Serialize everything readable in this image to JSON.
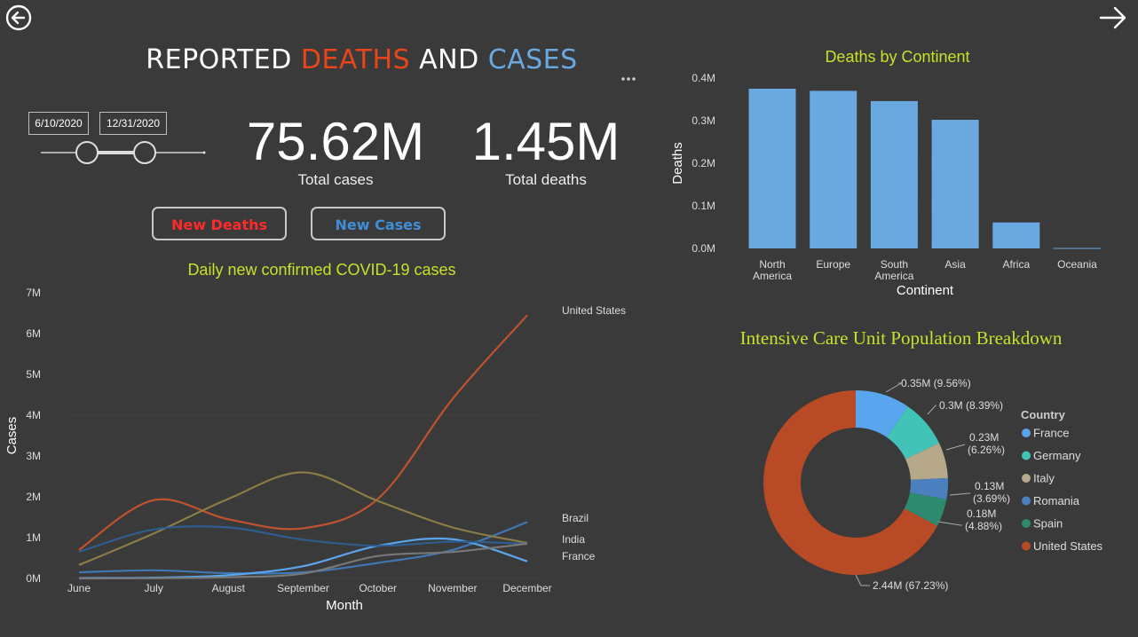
{
  "header": {
    "title_part1": "REPORTED ",
    "title_part2": "DEATHS",
    "title_part3": " AND ",
    "title_part4": "CASES"
  },
  "colors": {
    "deaths_red": "#e8461a",
    "cases_blue": "#6aa8e0",
    "accent_yellow": "#c9e02a"
  },
  "date_filter": {
    "start": "6/10/2020",
    "end": "12/31/2020"
  },
  "kpis": {
    "total_cases_value": "75.62M",
    "total_cases_label": "Total cases",
    "total_deaths_value": "1.45M",
    "total_deaths_label": "Total deaths"
  },
  "buttons": {
    "new_deaths": "New Deaths",
    "new_cases": "New Cases"
  },
  "chart_data": [
    {
      "type": "line",
      "title": "Daily new confirmed COVID-19 cases",
      "xlabel": "Month",
      "ylabel": "Cases",
      "categories": [
        "June",
        "July",
        "August",
        "September",
        "October",
        "November",
        "December"
      ],
      "y_ticks": [
        "0M",
        "1M",
        "2M",
        "3M",
        "4M",
        "5M",
        "6M",
        "7M"
      ],
      "ylim": [
        0,
        7000000
      ],
      "series": [
        {
          "name": "United States",
          "color": "#c0522e",
          "values": [
            700000,
            1920000,
            1450000,
            1230000,
            1950000,
            4400000,
            6450000
          ]
        },
        {
          "name": "Brazil",
          "color": "#3f77b5",
          "values": [
            150000,
            200000,
            130000,
            150000,
            380000,
            700000,
            1380000
          ]
        },
        {
          "name": "India",
          "color": "#8a7d45",
          "values": [
            330000,
            1100000,
            1950000,
            2600000,
            1900000,
            1250000,
            870000
          ]
        },
        {
          "name": "France",
          "color": "#5aa6ee",
          "values": [
            10000,
            20000,
            80000,
            300000,
            800000,
            960000,
            420000
          ]
        },
        {
          "name": "",
          "color": "#2f5d90",
          "values": [
            650000,
            1200000,
            1250000,
            950000,
            800000,
            900000,
            850000
          ]
        },
        {
          "name": "",
          "color": "#777777",
          "values": [
            0,
            5000,
            30000,
            120000,
            550000,
            650000,
            850000
          ]
        }
      ],
      "end_labels": [
        "United States",
        "Brazil",
        "India",
        "France"
      ],
      "grid": true
    },
    {
      "type": "bar",
      "title": "Deaths by Continent",
      "xlabel": "Continent",
      "ylabel": "Deaths",
      "categories": [
        [
          "North",
          "America"
        ],
        [
          "Europe"
        ],
        [
          "South",
          "America"
        ],
        [
          "Asia"
        ],
        [
          "Africa"
        ],
        [
          "Oceania"
        ]
      ],
      "values": [
        375000,
        370000,
        346000,
        302000,
        61000,
        1000
      ],
      "y_ticks": [
        "0.0M",
        "0.1M",
        "0.2M",
        "0.3M",
        "0.4M"
      ],
      "ylim": [
        0,
        400000
      ],
      "bar_color": "#6aa8e0",
      "grid": true
    },
    {
      "type": "pie",
      "title": "Intensive Care Unit Population Breakdown",
      "legend_title": "Country",
      "legend_position": "right",
      "slices": [
        {
          "name": "France",
          "value": 0.35,
          "label": "0.35M (9.56%)",
          "percent": 9.56,
          "color": "#5aa6ee"
        },
        {
          "name": "Germany",
          "value": 0.3,
          "label": "0.3M (8.39%)",
          "percent": 8.39,
          "color": "#42c3b8"
        },
        {
          "name": "Italy",
          "value": 0.23,
          "label_l1": "0.23M",
          "label_l2": "(6.26%)",
          "percent": 6.26,
          "color": "#b5a98a"
        },
        {
          "name": "Romania",
          "value": 0.13,
          "label_l1": "0.13M",
          "label_l2": "(3.69%)",
          "percent": 3.69,
          "color": "#4a7fc0"
        },
        {
          "name": "Spain",
          "value": 0.18,
          "label_l1": "0.18M",
          "label_l2": "(4.88%)",
          "percent": 4.88,
          "color": "#2e8a6e"
        },
        {
          "name": "United States",
          "value": 2.44,
          "label": "2.44M (67.23%)",
          "percent": 67.23,
          "color": "#b94a26"
        }
      ]
    }
  ]
}
